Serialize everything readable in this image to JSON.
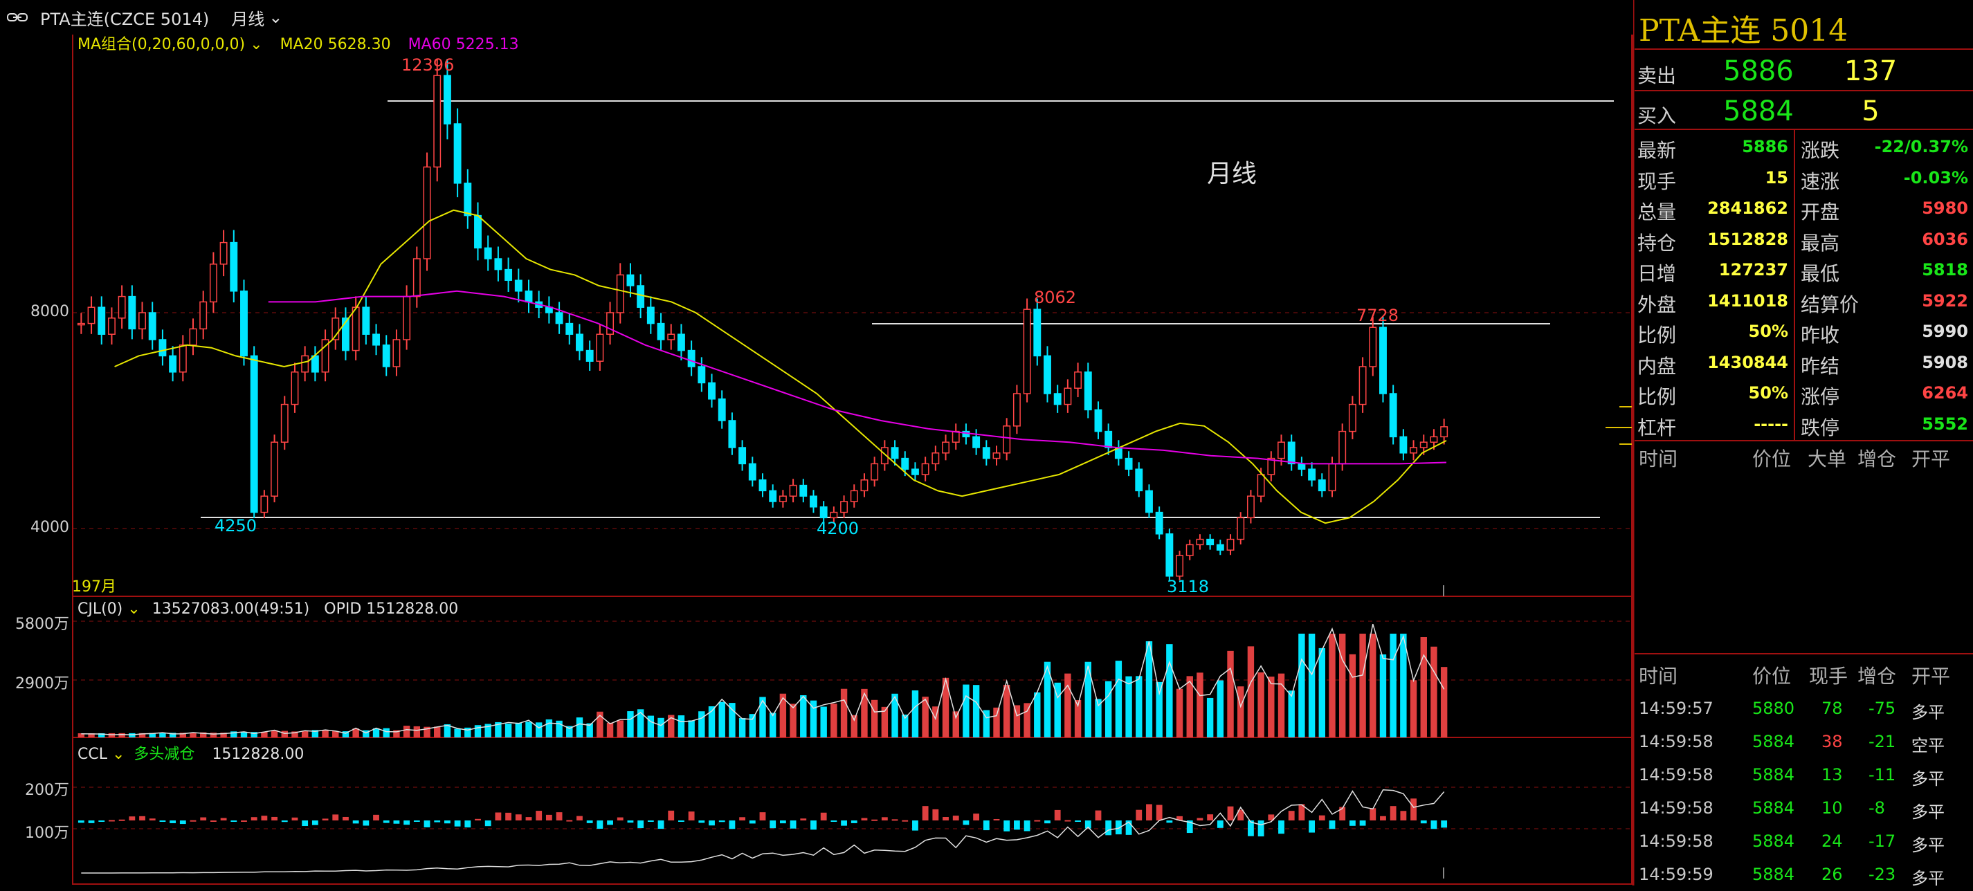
{
  "header": {
    "symbol": "PTA主连(CZCE 5014)",
    "period": "月线"
  },
  "main_chart": {
    "indicator": "MA组合(0,20,60,0,0,0)",
    "ma20": "MA20 5628.30",
    "ma60": "MA60 5225.13",
    "watermark": "月线",
    "start_label": "197月",
    "y_ticks": [
      "8000",
      "4000"
    ],
    "peaks": {
      "high1": "12396",
      "low1": "4250",
      "low2": "4200",
      "high2": "8062",
      "low3": "3118",
      "high3": "7728"
    },
    "colors": {
      "ma20": "#e6e600",
      "ma60": "#e600e6",
      "up": "#ff4545",
      "down": "#00e6ff"
    }
  },
  "volume_panel": {
    "indicator": "CJL(0)",
    "values": "13527083.00(49:51)",
    "opid": "OPID 1512828.00",
    "y_ticks": [
      "5800万",
      "2900万"
    ]
  },
  "oi_panel": {
    "indicator": "CCL",
    "mode": "多头减仓",
    "value": "1512828.00",
    "y_ticks": [
      "200万",
      "100万"
    ]
  },
  "chart_data": {
    "type": "candlestick",
    "y_range_main": [
      3000,
      13000
    ],
    "prices": [
      7800,
      8100,
      7600,
      7900,
      8300,
      7700,
      8000,
      7500,
      7200,
      6900,
      7400,
      7700,
      8200,
      8900,
      9300,
      8400,
      7200,
      4300,
      4600,
      5600,
      6300,
      6900,
      7200,
      6900,
      7500,
      7900,
      7300,
      8100,
      7600,
      7400,
      7000,
      7500,
      8300,
      9000,
      10700,
      12396,
      11500,
      10400,
      9800,
      9200,
      9000,
      8800,
      8600,
      8400,
      8200,
      8100,
      8000,
      7800,
      7600,
      7300,
      7100,
      7600,
      8000,
      8700,
      8500,
      8100,
      7800,
      7500,
      7600,
      7300,
      7000,
      6700,
      6400,
      6000,
      5500,
      5200,
      4900,
      4700,
      4500,
      4600,
      4800,
      4600,
      4400,
      4200,
      4300,
      4500,
      4700,
      4900,
      5200,
      5500,
      5300,
      5100,
      5000,
      5200,
      5400,
      5600,
      5800,
      5700,
      5500,
      5300,
      5400,
      5900,
      6500,
      8062,
      7200,
      6500,
      6300,
      6600,
      6900,
      6200,
      5800,
      5500,
      5300,
      5100,
      4700,
      4300,
      3900,
      3118,
      3500,
      3700,
      3800,
      3700,
      3600,
      3800,
      4200,
      4600,
      5000,
      5300,
      5600,
      5200,
      5100,
      4900,
      4700,
      5200,
      5800,
      6300,
      7000,
      7728,
      6500,
      5700,
      5400,
      5500,
      5600,
      5700,
      5886
    ],
    "ma20": [
      7000,
      7200,
      7300,
      7400,
      7350,
      7200,
      7100,
      7000,
      7100,
      7500,
      8100,
      8900,
      9300,
      9700,
      9900,
      9800,
      9400,
      9000,
      8800,
      8700,
      8500,
      8400,
      8300,
      8200,
      8000,
      7700,
      7400,
      7100,
      6800,
      6500,
      6100,
      5700,
      5300,
      4900,
      4700,
      4600,
      4700,
      4800,
      4900,
      5000,
      5200,
      5400,
      5600,
      5800,
      5950,
      5900,
      5600,
      5200,
      4700,
      4300,
      4100,
      4200,
      4500,
      4900,
      5400,
      5630
    ],
    "ma60": [
      8200,
      8200,
      8300,
      8300,
      8400,
      8300,
      8100,
      7800,
      7400,
      7100,
      6800,
      6500,
      6200,
      6000,
      5850,
      5750,
      5650,
      5600,
      5500,
      5450,
      5350,
      5300,
      5200,
      5200,
      5200,
      5225
    ]
  },
  "right_panel": {
    "title": "PTA主连  5014",
    "sell": {
      "label": "卖出",
      "price": "5886",
      "vol": "137"
    },
    "buy": {
      "label": "买入",
      "price": "5884",
      "vol": "5"
    },
    "left_stats": [
      {
        "k": "最新",
        "v": "5886",
        "c": "#19e619"
      },
      {
        "k": "现手",
        "v": "15",
        "c": "#ffff40"
      },
      {
        "k": "总量",
        "v": "2841862",
        "c": "#ffff40"
      },
      {
        "k": "持仓",
        "v": "1512828",
        "c": "#ffff40"
      },
      {
        "k": "日增",
        "v": "127237",
        "c": "#ffff40"
      },
      {
        "k": "外盘",
        "v": "1411018",
        "c": "#ffff40"
      },
      {
        "k": "比例",
        "v": "50%",
        "c": "#ffff40"
      },
      {
        "k": "内盘",
        "v": "1430844",
        "c": "#ffff40"
      },
      {
        "k": "比例",
        "v": "50%",
        "c": "#ffff40"
      },
      {
        "k": "杠杆",
        "v": "-----",
        "c": "#ffff40"
      }
    ],
    "right_stats": [
      {
        "k": "涨跌",
        "v": "-22/0.37%",
        "c": "#19e619"
      },
      {
        "k": "速涨",
        "v": "-0.03%",
        "c": "#19e619"
      },
      {
        "k": "开盘",
        "v": "5980",
        "c": "#ff4545"
      },
      {
        "k": "最高",
        "v": "6036",
        "c": "#ff4545"
      },
      {
        "k": "最低",
        "v": "5818",
        "c": "#19e619"
      },
      {
        "k": "结算价",
        "v": "5922",
        "c": "#ff4545"
      },
      {
        "k": "昨收",
        "v": "5990",
        "c": "#e0e0e0"
      },
      {
        "k": "昨结",
        "v": "5908",
        "c": "#e0e0e0"
      },
      {
        "k": "涨停",
        "v": "6264",
        "c": "#ff4545"
      },
      {
        "k": "跌停",
        "v": "5552",
        "c": "#19e619"
      }
    ],
    "big_order_header": [
      "时间",
      "价位",
      "大单",
      "增仓",
      "开平"
    ],
    "tick_header": [
      "时间",
      "价位",
      "现手",
      "增仓",
      "开平"
    ],
    "ticks": [
      {
        "t": "14:59:57",
        "p": "5880",
        "v": "78",
        "d": "-75",
        "o": "多平",
        "vc": "#19e619"
      },
      {
        "t": "14:59:58",
        "p": "5884",
        "v": "38",
        "d": "-21",
        "o": "空平",
        "vc": "#ff4545"
      },
      {
        "t": "14:59:58",
        "p": "5884",
        "v": "13",
        "d": "-11",
        "o": "多平",
        "vc": "#19e619"
      },
      {
        "t": "14:59:58",
        "p": "5884",
        "v": "10",
        "d": "-8",
        "o": "多平",
        "vc": "#19e619"
      },
      {
        "t": "14:59:58",
        "p": "5884",
        "v": "24",
        "d": "-17",
        "o": "多平",
        "vc": "#19e619"
      },
      {
        "t": "14:59:59",
        "p": "5884",
        "v": "26",
        "d": "-23",
        "o": "多平",
        "vc": "#19e619"
      }
    ]
  }
}
